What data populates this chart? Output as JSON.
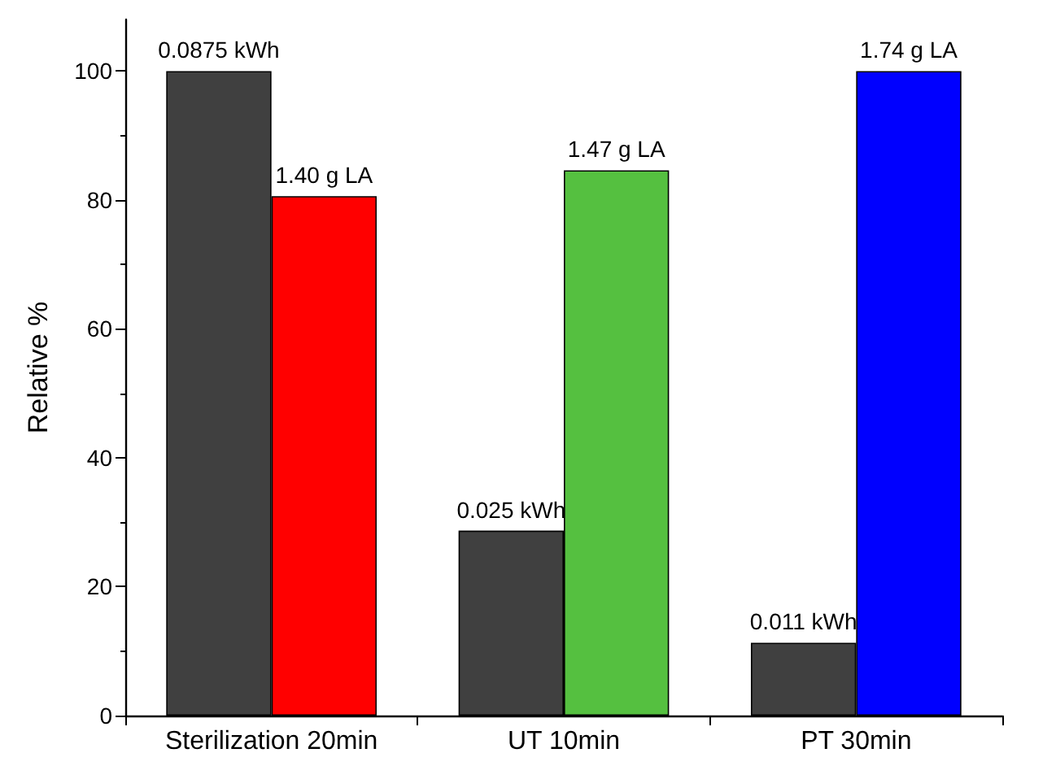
{
  "chart_data": {
    "type": "bar",
    "ylabel": "Relative %",
    "categories": [
      "Sterilization 20min",
      "UT 10min",
      "PT 30min"
    ],
    "series": [
      {
        "color": "#404040",
        "values": [
          100,
          28.7,
          11.3
        ]
      },
      {
        "colors": [
          "#ff0000",
          "#55c040",
          "#0000ff"
        ],
        "values": [
          80.6,
          84.6,
          100
        ]
      }
    ],
    "annotations": [
      {
        "text": "0.0875 kWh",
        "x": "Sterilization 20min",
        "y": 100
      },
      {
        "text": "0.025 kWh",
        "x": "UT 10min",
        "y": 28.7
      },
      {
        "text": "0.011 kWh",
        "x": "PT 30min",
        "y": 11.3
      },
      {
        "text": "1.40 g LA",
        "x": "Sterilization 20min",
        "y": 80.6
      },
      {
        "text": "1.47 g LA",
        "x": "UT 10min",
        "y": 84.6
      },
      {
        "text": "1.74 g LA",
        "x": "PT 30min",
        "y": 100
      }
    ],
    "ylim": [
      0,
      108
    ],
    "yticks": [
      0,
      20,
      40,
      60,
      80,
      100
    ],
    "grid": false
  }
}
